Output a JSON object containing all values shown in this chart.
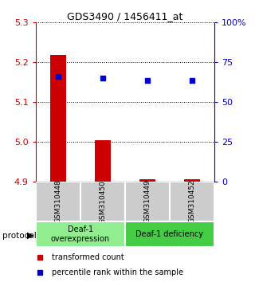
{
  "title": "GDS3490 / 1456411_at",
  "samples": [
    "GSM310448",
    "GSM310450",
    "GSM310449",
    "GSM310452"
  ],
  "bar_values": [
    5.218,
    5.005,
    4.907,
    4.906
  ],
  "dot_values": [
    5.165,
    5.16,
    5.155,
    5.155
  ],
  "bar_baseline": 4.9,
  "ylim": [
    4.9,
    5.3
  ],
  "yticks_left": [
    4.9,
    5.0,
    5.1,
    5.2,
    5.3
  ],
  "ytick_right_labels": [
    "0",
    "25",
    "50",
    "75",
    "100%"
  ],
  "bar_color": "#cc0000",
  "dot_color": "#0000cc",
  "groups": [
    {
      "label": "Deaf-1\noverexpression",
      "start": 0,
      "end": 2,
      "color": "#90ee90"
    },
    {
      "label": "Deaf-1 deficiency",
      "start": 2,
      "end": 4,
      "color": "#44cc44"
    }
  ],
  "protocol_label": "protocol",
  "legend_bar_label": "transformed count",
  "legend_dot_label": "percentile rank within the sample",
  "grid_color": "#000000",
  "bg_color": "#ffffff",
  "sample_box_color": "#cccccc",
  "title_fontsize": 9,
  "axis_fontsize": 8,
  "sample_fontsize": 6.5,
  "group_fontsize": 7,
  "legend_fontsize": 7
}
